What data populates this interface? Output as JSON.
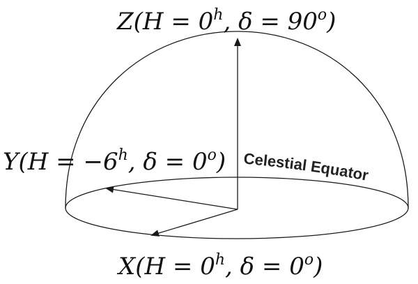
{
  "labels": {
    "z": {
      "pre": "Z(H = 0",
      "sup": "h",
      "post": ", δ = 90",
      "sup2": "o",
      "end": ")"
    },
    "y": {
      "pre": "Y(H = −6",
      "sup": "h",
      "post": ", δ = 0",
      "sup2": "o",
      "end": ")"
    },
    "x": {
      "pre": "X(H = 0",
      "sup": "h",
      "post": ", δ = 0",
      "sup2": "o",
      "end": ")"
    },
    "equator": "Celestial Equator"
  },
  "colors": {
    "stroke": "#1a1a1a",
    "text": "#111111"
  }
}
